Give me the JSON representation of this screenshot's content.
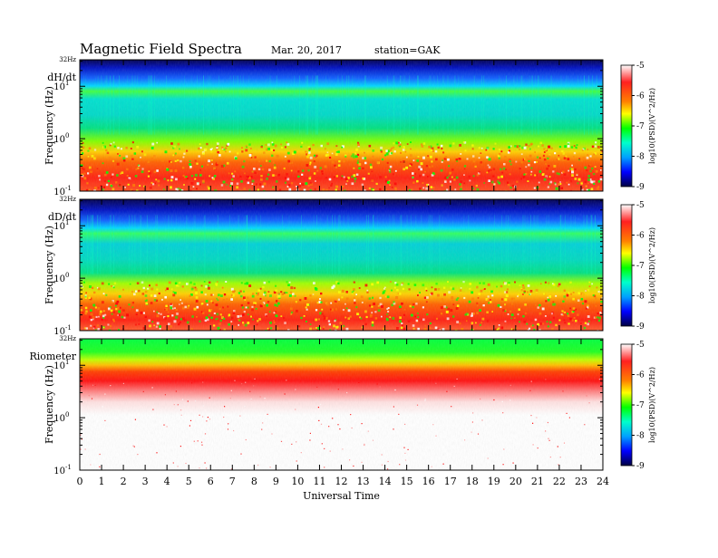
{
  "header": {
    "title": "Magnetic Field Spectra",
    "date": "Mar. 20, 2017",
    "station": "station=GAK"
  },
  "colors": {
    "colormap": [
      "#000066",
      "#0000ff",
      "#00ffff",
      "#00ff00",
      "#ffff00",
      "#ff8000",
      "#ff0000",
      "#ffffff"
    ]
  },
  "chart_data": [
    {
      "type": "heatmap",
      "panel_label": "dH/dt",
      "top_label": "32Hz",
      "ylabel": "Frequency (Hz)",
      "yscale": "log",
      "ylim": [
        0.1,
        32
      ],
      "yticks": [
        {
          "base": "10",
          "exp": "1"
        },
        {
          "base": "10",
          "exp": "0"
        },
        {
          "base": "10",
          "exp": "-1"
        }
      ],
      "xlim": [
        0,
        24
      ],
      "colorbar": {
        "ticks": [
          "-5",
          "-6",
          "-7",
          "-8",
          "-9"
        ],
        "label": "log10(PSD)(V^2/Hz)"
      }
    },
    {
      "type": "heatmap",
      "panel_label": "dD/dt",
      "top_label": "32Hz",
      "ylabel": "Frequency (Hz)",
      "yscale": "log",
      "ylim": [
        0.1,
        32
      ],
      "yticks": [
        {
          "base": "10",
          "exp": "1"
        },
        {
          "base": "10",
          "exp": "0"
        },
        {
          "base": "10",
          "exp": "-1"
        }
      ],
      "xlim": [
        0,
        24
      ],
      "colorbar": {
        "ticks": [
          "-5",
          "-6",
          "-7",
          "-8",
          "-9"
        ],
        "label": "log10(PSD)(V^2/Hz)"
      }
    },
    {
      "type": "heatmap",
      "panel_label": "Riometer",
      "top_label": "32Hz",
      "ylabel": "Frequency (Hz)",
      "yscale": "log",
      "ylim": [
        0.1,
        32
      ],
      "yticks": [
        {
          "base": "10",
          "exp": "1"
        },
        {
          "base": "10",
          "exp": "0"
        },
        {
          "base": "10",
          "exp": "-1"
        }
      ],
      "xlim": [
        0,
        24
      ],
      "xticks": [
        "0",
        "1",
        "2",
        "3",
        "4",
        "5",
        "6",
        "7",
        "8",
        "9",
        "10",
        "11",
        "12",
        "13",
        "14",
        "15",
        "16",
        "17",
        "18",
        "19",
        "20",
        "21",
        "22",
        "23",
        "24"
      ],
      "xlabel": "Universal Time",
      "colorbar": {
        "ticks": [
          "-5",
          "-6",
          "-7",
          "-8",
          "-9"
        ],
        "label": "log10(PSD)(V^2/Hz)"
      }
    }
  ]
}
